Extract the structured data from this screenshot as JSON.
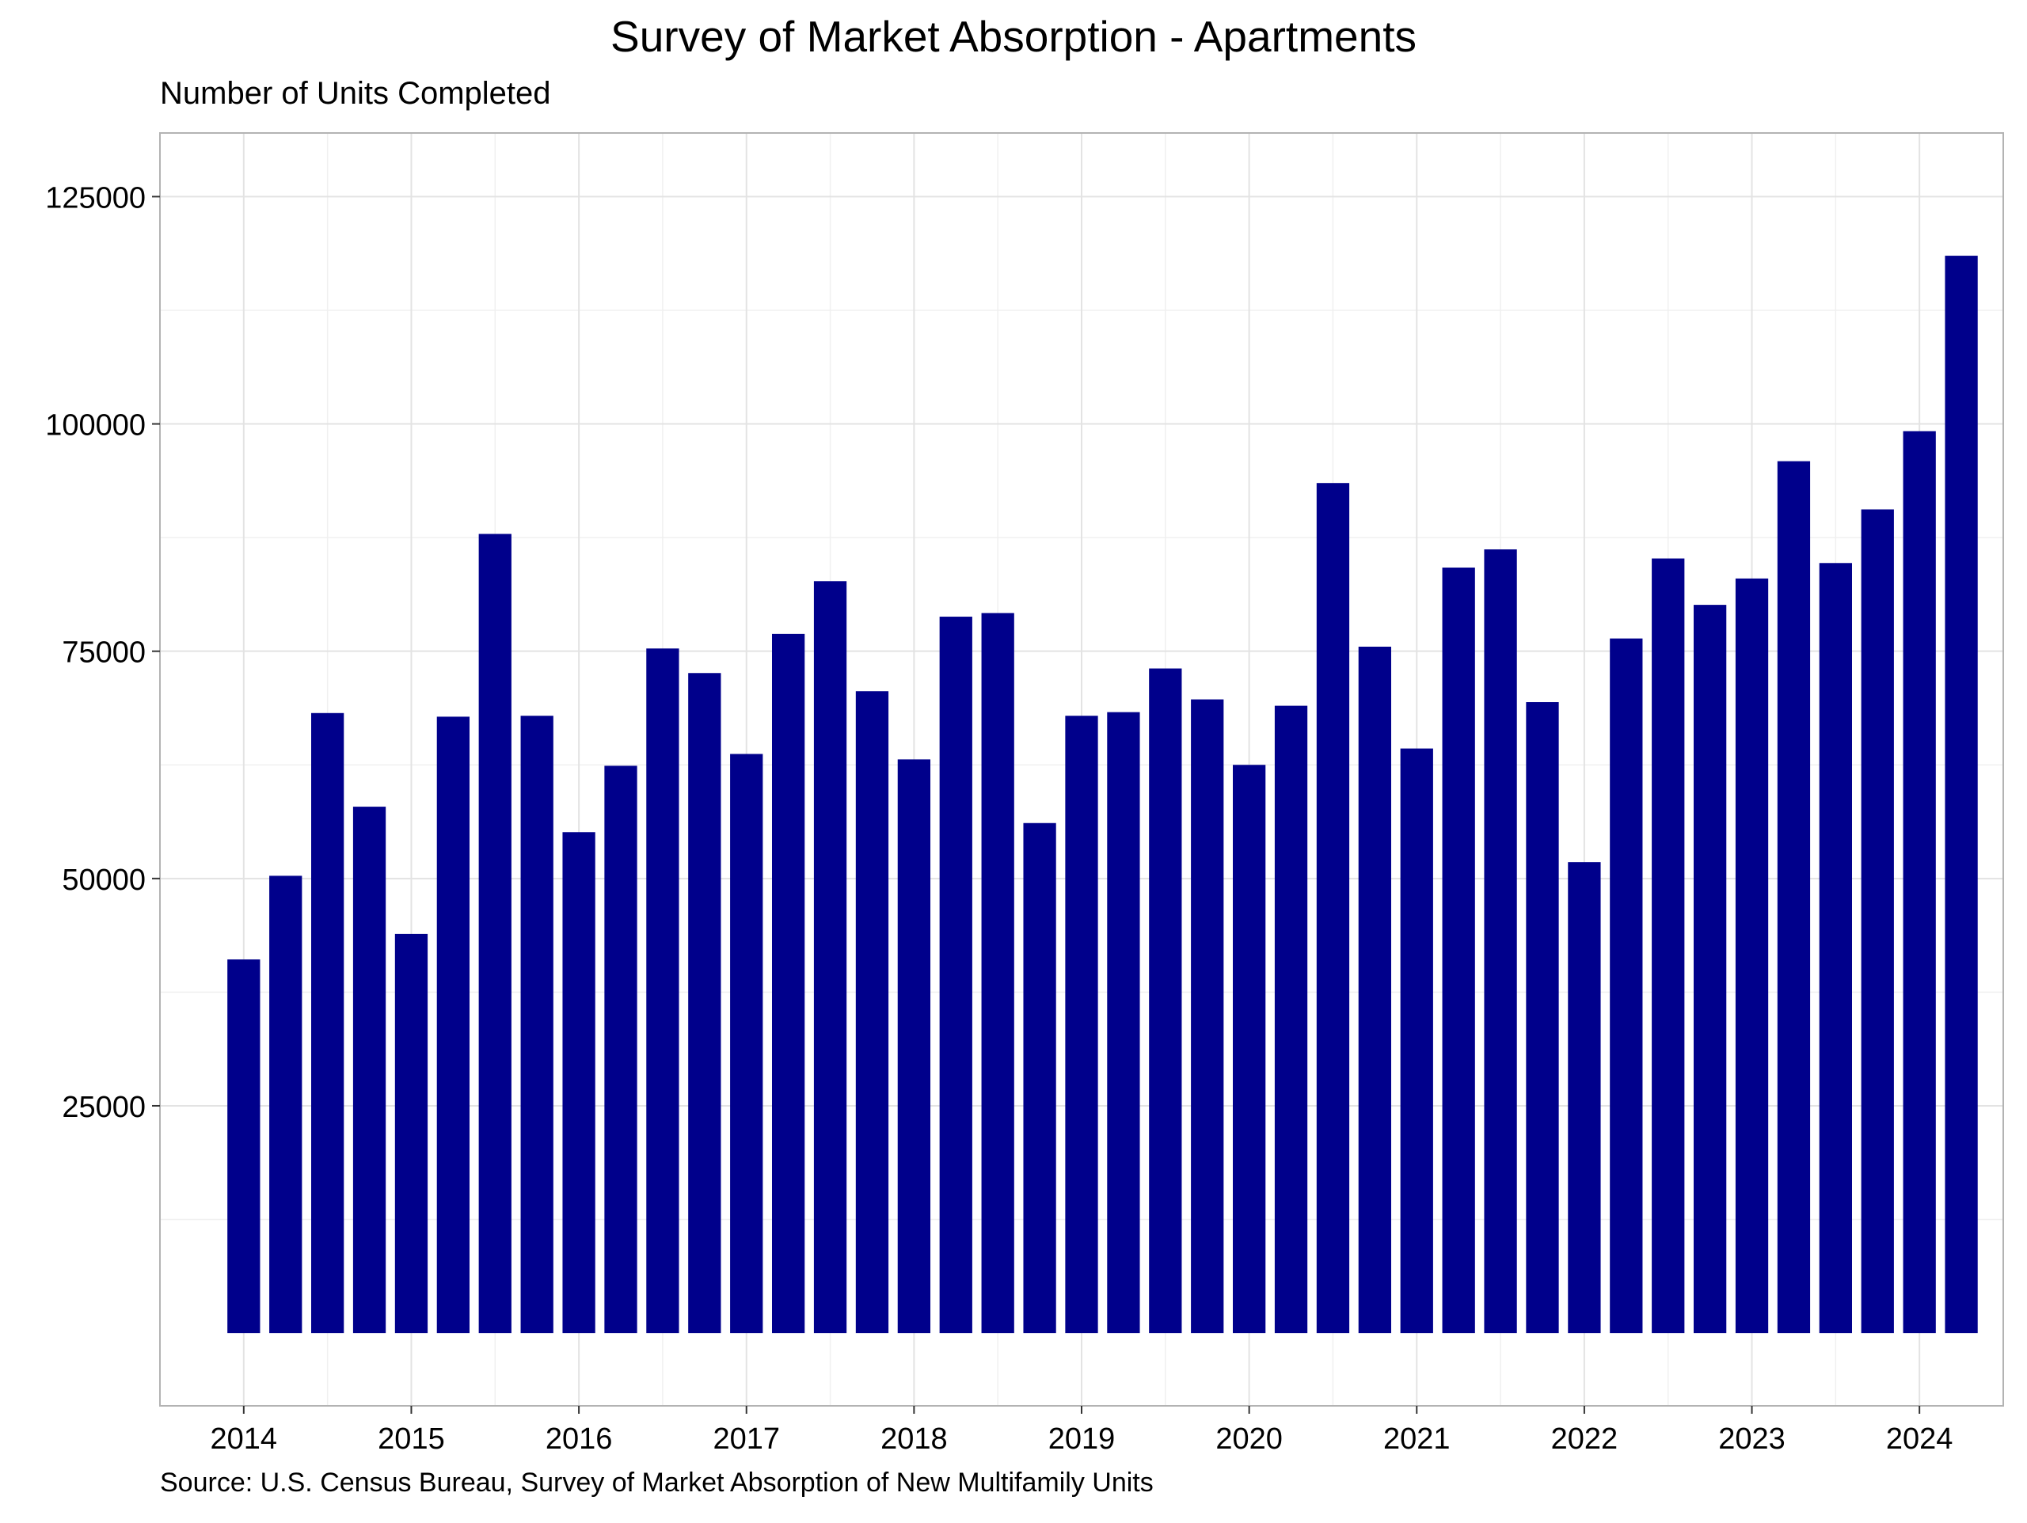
{
  "chart_data": {
    "type": "bar",
    "title": "Survey of Market Absorption - Apartments",
    "subtitle": "Number of Units Completed",
    "caption": "Source: U.S. Census Bureau, Survey of Market Absorption of New Multifamily Units",
    "xlabel": "",
    "ylabel": "",
    "bar_color": "#00008b",
    "grid": true,
    "legend": "none",
    "ylim": [
      -8000,
      132000
    ],
    "xlim": [
      2013.5,
      2024.5
    ],
    "y_ticks": [
      25000,
      50000,
      75000,
      100000,
      125000
    ],
    "x_ticks": [
      2014,
      2015,
      2016,
      2017,
      2018,
      2019,
      2020,
      2021,
      2022,
      2023,
      2024
    ],
    "x": [
      2014.0,
      2014.25,
      2014.5,
      2014.75,
      2015.0,
      2015.25,
      2015.5,
      2015.75,
      2016.0,
      2016.25,
      2016.5,
      2016.75,
      2017.0,
      2017.25,
      2017.5,
      2017.75,
      2018.0,
      2018.25,
      2018.5,
      2018.75,
      2019.0,
      2019.25,
      2019.5,
      2019.75,
      2020.0,
      2020.25,
      2020.5,
      2020.75,
      2021.0,
      2021.25,
      2021.5,
      2021.75,
      2022.0,
      2022.25,
      2022.5,
      2022.75,
      2023.0,
      2023.25,
      2023.5,
      2023.75,
      2024.0,
      2024.25
    ],
    "values": [
      41100,
      50300,
      68200,
      57900,
      43900,
      67800,
      87900,
      67900,
      55100,
      62400,
      75300,
      72600,
      63700,
      76900,
      82700,
      70600,
      63100,
      78800,
      79200,
      56100,
      67900,
      68300,
      73100,
      69700,
      62500,
      69000,
      93500,
      75500,
      64300,
      84200,
      86200,
      69400,
      51800,
      76400,
      85200,
      80100,
      83000,
      95900,
      84700,
      90600,
      99200,
      118500
    ]
  }
}
